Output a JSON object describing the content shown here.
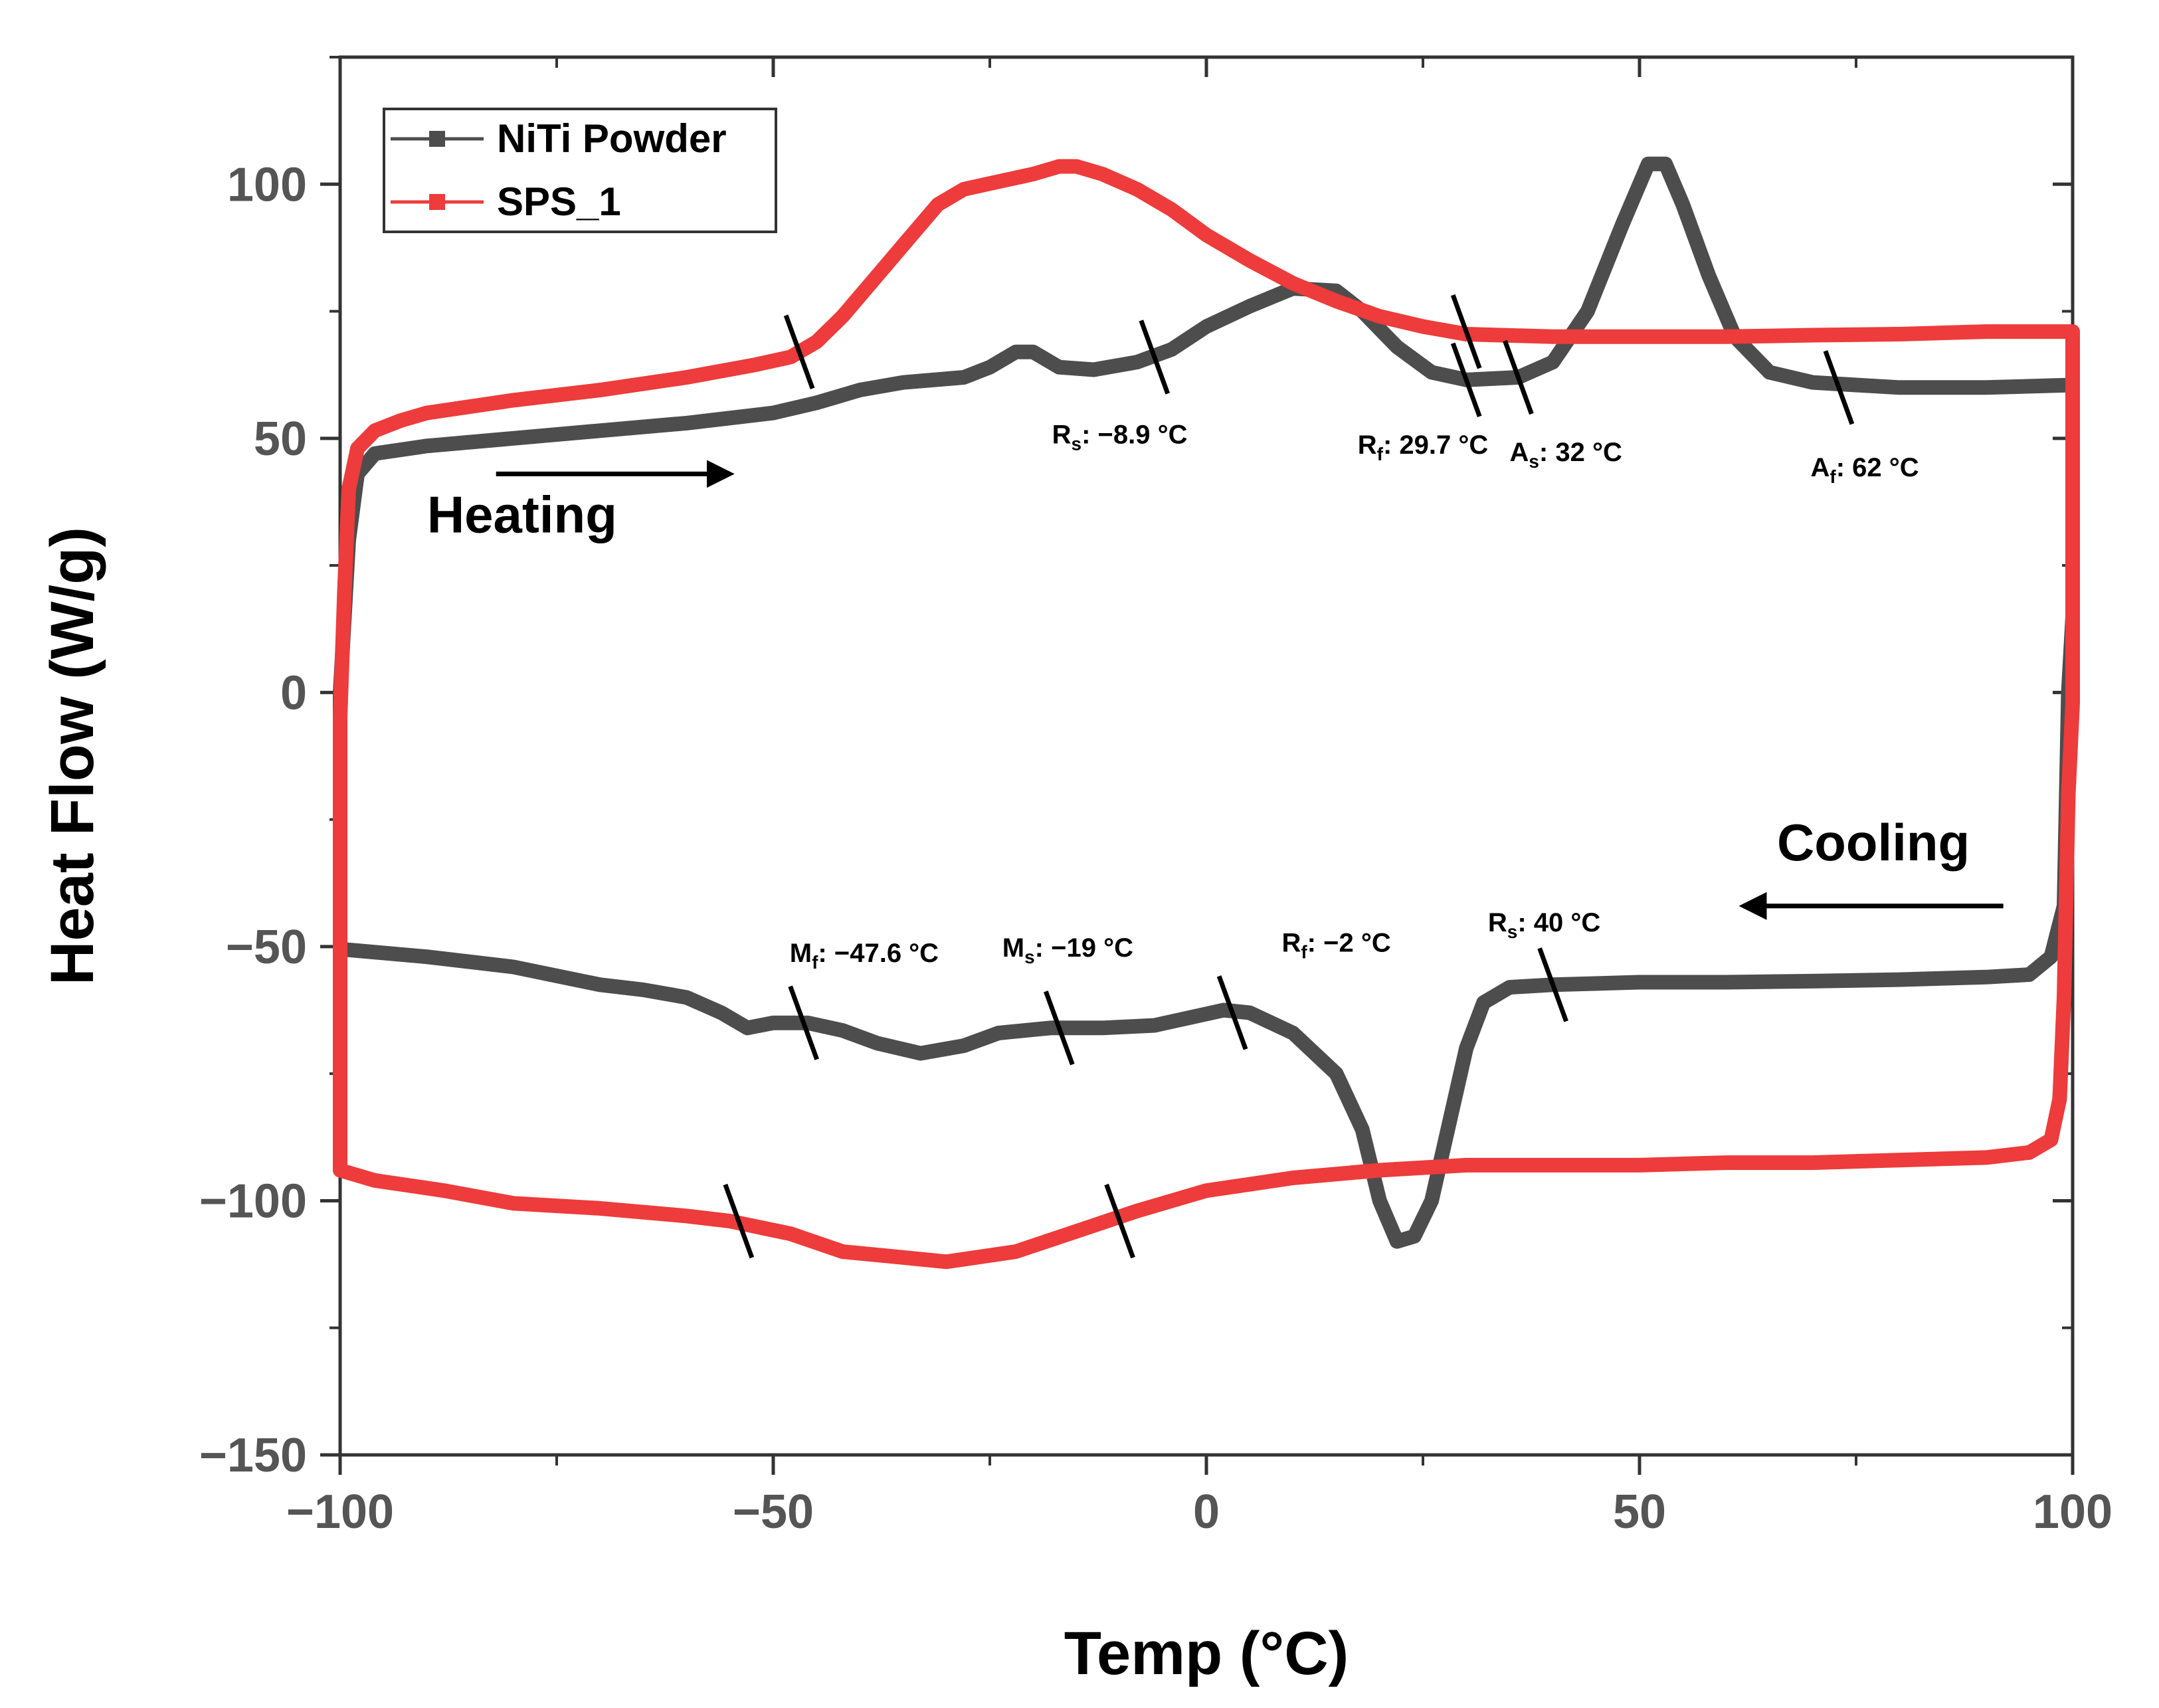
{
  "chart_data": {
    "type": "line",
    "xlabel": "Temp (°C)",
    "ylabel": "Heat Flow (W/g)",
    "xlim": [
      -100,
      100
    ],
    "ylim": [
      -150,
      125
    ],
    "xticks": [
      -100,
      -50,
      0,
      50,
      100
    ],
    "xtick_labels": [
      "−100",
      "−50",
      "0",
      "50",
      "100"
    ],
    "yticks": [
      -150,
      -100,
      -50,
      0,
      50,
      100
    ],
    "ytick_labels": [
      "−150",
      "−100",
      "−50",
      "0",
      "50",
      "100"
    ],
    "grid": false,
    "legend_position": "top-left",
    "colors": {
      "niti": "#4d4d4d",
      "sps": "#ee3b3b"
    },
    "series": [
      {
        "name": "NiTi Powder",
        "key": "niti",
        "heating": [
          [
            -100,
            0
          ],
          [
            -99,
            30
          ],
          [
            -98,
            43
          ],
          [
            -96,
            47
          ],
          [
            -90,
            48.5
          ],
          [
            -80,
            50
          ],
          [
            -70,
            51.5
          ],
          [
            -60,
            53
          ],
          [
            -50,
            55
          ],
          [
            -45,
            57
          ],
          [
            -40,
            59.5
          ],
          [
            -35,
            61
          ],
          [
            -28,
            62
          ],
          [
            -25,
            64
          ],
          [
            -22,
            67
          ],
          [
            -20,
            67
          ],
          [
            -17,
            64
          ],
          [
            -13,
            63.5
          ],
          [
            -8,
            65
          ],
          [
            -4,
            67.5
          ],
          [
            0,
            72
          ],
          [
            5,
            76
          ],
          [
            10,
            79.5
          ],
          [
            15,
            79
          ],
          [
            18,
            75
          ],
          [
            22,
            68
          ],
          [
            26,
            63
          ],
          [
            30,
            61.5
          ],
          [
            36,
            62
          ],
          [
            40,
            65
          ],
          [
            44,
            75
          ],
          [
            48,
            92
          ],
          [
            51,
            104
          ],
          [
            53,
            104
          ],
          [
            55,
            96
          ],
          [
            58,
            82
          ],
          [
            61,
            70
          ],
          [
            65,
            63
          ],
          [
            70,
            61
          ],
          [
            80,
            60
          ],
          [
            90,
            60
          ],
          [
            100,
            60.5
          ]
        ],
        "cooling": [
          [
            100,
            15
          ],
          [
            99.5,
            0
          ],
          [
            99,
            -42
          ],
          [
            97.5,
            -52
          ],
          [
            95,
            -55.5
          ],
          [
            90,
            -56
          ],
          [
            80,
            -56.5
          ],
          [
            70,
            -56.8
          ],
          [
            60,
            -57
          ],
          [
            50,
            -57
          ],
          [
            40,
            -57.5
          ],
          [
            35,
            -58
          ],
          [
            32,
            -61
          ],
          [
            30,
            -70
          ],
          [
            28,
            -85
          ],
          [
            26,
            -100
          ],
          [
            24,
            -107
          ],
          [
            22,
            -108
          ],
          [
            20,
            -100
          ],
          [
            18,
            -86
          ],
          [
            15,
            -75
          ],
          [
            10,
            -67
          ],
          [
            5,
            -63
          ],
          [
            2,
            -62.5
          ],
          [
            -2,
            -64
          ],
          [
            -6,
            -65.5
          ],
          [
            -12,
            -66
          ],
          [
            -18,
            -66
          ],
          [
            -24,
            -67
          ],
          [
            -28,
            -69.5
          ],
          [
            -33,
            -71
          ],
          [
            -38,
            -69
          ],
          [
            -42,
            -66.5
          ],
          [
            -46,
            -65
          ],
          [
            -50,
            -65
          ],
          [
            -53,
            -66
          ],
          [
            -56,
            -63
          ],
          [
            -60,
            -60
          ],
          [
            -65,
            -58.5
          ],
          [
            -70,
            -57.5
          ],
          [
            -80,
            -54
          ],
          [
            -90,
            -52
          ],
          [
            -100,
            -50.5
          ]
        ]
      },
      {
        "name": "SPS_1",
        "key": "sps",
        "heating": [
          [
            -100,
            -5
          ],
          [
            -99.5,
            20
          ],
          [
            -99,
            40
          ],
          [
            -98,
            48
          ],
          [
            -96,
            51.5
          ],
          [
            -93,
            53.5
          ],
          [
            -90,
            55
          ],
          [
            -80,
            57.5
          ],
          [
            -70,
            59.5
          ],
          [
            -60,
            62
          ],
          [
            -52,
            64.5
          ],
          [
            -48,
            66
          ],
          [
            -45,
            69
          ],
          [
            -42,
            74
          ],
          [
            -38,
            82
          ],
          [
            -34,
            90
          ],
          [
            -31,
            96
          ],
          [
            -28,
            99
          ],
          [
            -24,
            100.5
          ],
          [
            -20,
            102
          ],
          [
            -17,
            103.5
          ],
          [
            -15,
            103.5
          ],
          [
            -12,
            102
          ],
          [
            -8,
            99
          ],
          [
            -4,
            95
          ],
          [
            0,
            90
          ],
          [
            5,
            85
          ],
          [
            10,
            80.5
          ],
          [
            15,
            77
          ],
          [
            20,
            74
          ],
          [
            25,
            72
          ],
          [
            30,
            70.5
          ],
          [
            40,
            70
          ],
          [
            50,
            70
          ],
          [
            60,
            70
          ],
          [
            70,
            70.3
          ],
          [
            80,
            70.5
          ],
          [
            90,
            71
          ],
          [
            95,
            71
          ],
          [
            100,
            71
          ]
        ],
        "cooling": [
          [
            100,
            -2
          ],
          [
            99.5,
            -20
          ],
          [
            99,
            -60
          ],
          [
            98.5,
            -80
          ],
          [
            97.5,
            -88
          ],
          [
            95,
            -90.5
          ],
          [
            90,
            -91.5
          ],
          [
            80,
            -92
          ],
          [
            70,
            -92.5
          ],
          [
            60,
            -92.5
          ],
          [
            50,
            -93
          ],
          [
            40,
            -93
          ],
          [
            30,
            -93
          ],
          [
            20,
            -94
          ],
          [
            10,
            -95.5
          ],
          [
            0,
            -98
          ],
          [
            -8,
            -102
          ],
          [
            -15,
            -106
          ],
          [
            -22,
            -110
          ],
          [
            -30,
            -112
          ],
          [
            -36,
            -111
          ],
          [
            -42,
            -110
          ],
          [
            -48,
            -106.5
          ],
          [
            -55,
            -104
          ],
          [
            -60,
            -103
          ],
          [
            -70,
            -101.5
          ],
          [
            -80,
            -100.5
          ],
          [
            -88,
            -98
          ],
          [
            -96,
            -96
          ],
          [
            -100,
            -94
          ]
        ]
      }
    ],
    "markers": [
      {
        "series": "sps",
        "x": -47,
        "y": 67
      },
      {
        "series": "niti",
        "x": -6,
        "y": 66
      },
      {
        "series": "sps",
        "x": 30,
        "y": 71
      },
      {
        "series": "niti",
        "x": 30,
        "y": 61.5
      },
      {
        "series": "niti",
        "x": 36,
        "y": 62
      },
      {
        "series": "niti",
        "x": 73,
        "y": 60
      },
      {
        "series": "niti",
        "x": -46.5,
        "y": -65
      },
      {
        "series": "niti",
        "x": -17,
        "y": -66
      },
      {
        "series": "niti",
        "x": 3,
        "y": -63
      },
      {
        "series": "niti",
        "x": 40,
        "y": -57.5
      },
      {
        "series": "sps",
        "x": -54,
        "y": -104
      },
      {
        "series": "sps",
        "x": -10,
        "y": -104
      }
    ],
    "annotations": [
      {
        "main": "R",
        "sub": "s",
        "text": ": −8.9 °C",
        "x": -10,
        "y": 49
      },
      {
        "main": "R",
        "sub": "f",
        "text": ": 29.7 °C",
        "x": 25,
        "y": 47
      },
      {
        "main": "A",
        "sub": "s",
        "text": ": 32 °C",
        "x": 41.5,
        "y": 45.5
      },
      {
        "main": "A",
        "sub": "f",
        "text": ": 62 °C",
        "x": 76,
        "y": 42.5
      },
      {
        "main": "M",
        "sub": "f",
        "text": ": −47.6 °C",
        "x": -39.5,
        "y": -53
      },
      {
        "main": "M",
        "sub": "s",
        "text": ": −19 °C",
        "x": -16,
        "y": -52
      },
      {
        "main": "R",
        "sub": "f",
        "text": ": −2 °C",
        "x": 15,
        "y": -51
      },
      {
        "main": "R",
        "sub": "s",
        "text": ": 40 °C",
        "x": 39,
        "y": -47
      }
    ],
    "direction_labels": [
      {
        "label": "Heating",
        "x": -79,
        "y": 31.5,
        "arrow_from": -82,
        "arrow_to": -55,
        "arrow_y": 43
      },
      {
        "label": "Cooling",
        "x": 77,
        "y": -33,
        "arrow_from": 92,
        "arrow_to": 62,
        "arrow_y": -42
      }
    ]
  }
}
